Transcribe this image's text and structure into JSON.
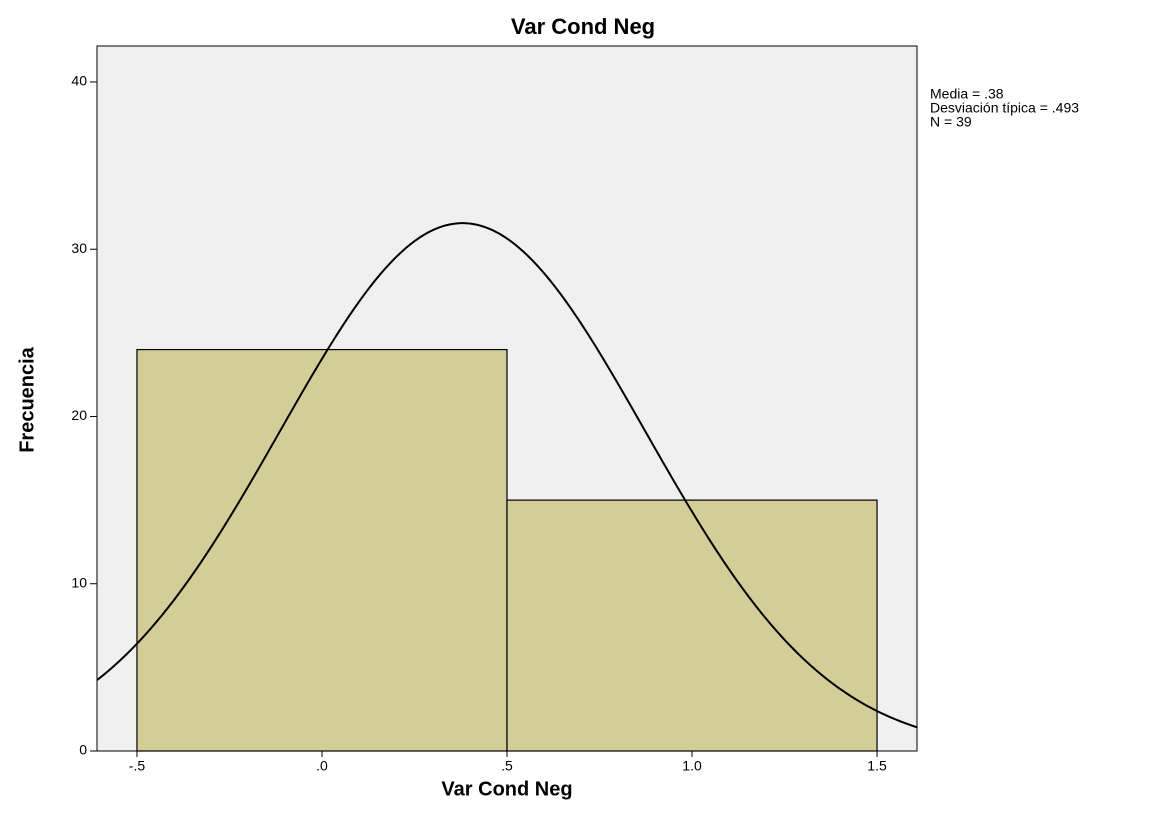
{
  "chart_data": {
    "type": "histogram",
    "title": "Var Cond Neg",
    "x_label": "Var Cond Neg",
    "y_label": "Frecuencia",
    "bins": [
      -0.5,
      0.5,
      1.5
    ],
    "counts": [
      24,
      15
    ],
    "color": "#d3ce97",
    "background": "#f0f0f0",
    "xlim": [
      -0.608,
      1.608
    ],
    "xticks": [
      {
        "value": -0.5,
        "label": "-.5"
      },
      {
        "value": 0,
        "label": ".0"
      },
      {
        "value": 0.5,
        "label": ".5"
      },
      {
        "value": 1.0,
        "label": "1.0"
      },
      {
        "value": 1.5,
        "label": "1.5"
      }
    ],
    "ylim": [
      0,
      42.15
    ],
    "yticks": [
      0,
      10,
      20,
      30,
      40
    ],
    "normal_curve": true,
    "stats": [
      {
        "value": 0.38,
        "label": "Media = .38"
      },
      {
        "value": 0.493,
        "label": "Desviación típica = .493"
      },
      {
        "value": 39,
        "label": "N = 39"
      }
    ]
  }
}
